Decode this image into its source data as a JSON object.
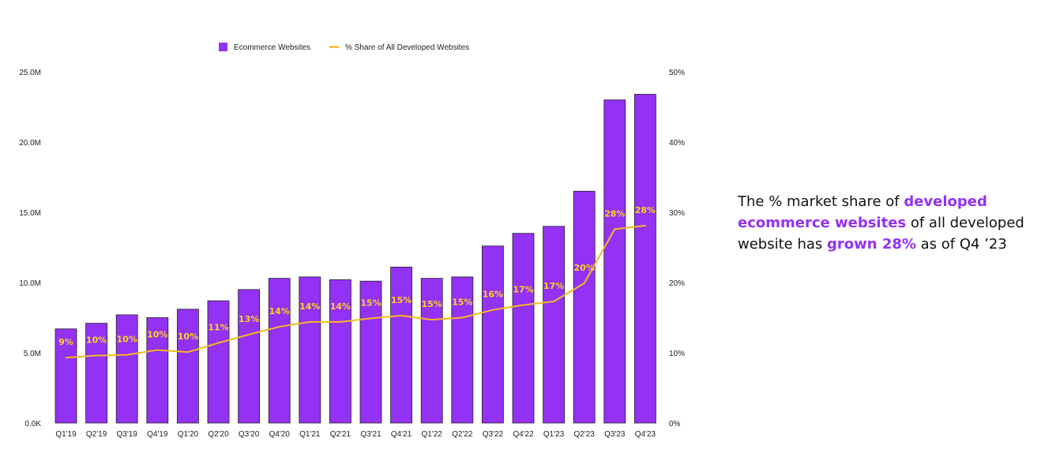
{
  "chart_data": {
    "type": "bar",
    "categories": [
      "Q1'19",
      "Q2'19",
      "Q3'19",
      "Q4'19",
      "Q1'20",
      "Q2'20",
      "Q3'20",
      "Q4'20",
      "Q1'21",
      "Q2'21",
      "Q3'21",
      "Q4'21",
      "Q1'22",
      "Q2'22",
      "Q3'22",
      "Q4'22",
      "Q1'23",
      "Q2'23",
      "Q3'23",
      "Q4'23"
    ],
    "series": [
      {
        "name": "Ecommerce Websites",
        "kind": "bar",
        "axis": "left",
        "color": "#9331F5",
        "values": [
          6.7,
          7.1,
          7.7,
          7.5,
          8.1,
          8.7,
          9.5,
          10.3,
          10.4,
          10.2,
          10.1,
          11.1,
          10.3,
          10.4,
          12.6,
          13.5,
          14.0,
          16.5,
          23.0,
          23.4
        ]
      },
      {
        "name": "% Share of All Developed Websites",
        "kind": "line",
        "axis": "right",
        "color": "#F5B823",
        "values": [
          9.3,
          9.6,
          9.7,
          10.4,
          10.1,
          11.4,
          12.6,
          13.7,
          14.4,
          14.4,
          14.9,
          15.3,
          14.7,
          15.0,
          16.1,
          16.8,
          17.3,
          19.9,
          27.6,
          28.1
        ]
      }
    ],
    "data_labels": [
      "9%",
      "10%",
      "10%",
      "10%",
      "10%",
      "11%",
      "13%",
      "14%",
      "14%",
      "14%",
      "15%",
      "15%",
      "15%",
      "15%",
      "16%",
      "17%",
      "17%",
      "20%",
      "28%",
      "28%"
    ],
    "left_axis": {
      "min": 0,
      "max": 25,
      "ticks": [
        "0.0K",
        "5.0M",
        "10.0M",
        "15.0M",
        "20.0M",
        "25.0M"
      ]
    },
    "right_axis": {
      "min": 0,
      "max": 50,
      "ticks": [
        "0%",
        "10%",
        "20%",
        "30%",
        "40%",
        "50%"
      ]
    },
    "legend_position": "top-center",
    "grid": false,
    "colors": {
      "bar": "#9331F5",
      "line": "#F5B823",
      "label": "#FFD21F"
    }
  },
  "caption": {
    "part1": "The % market share of ",
    "highlight1": "developed ecommerce websites",
    "part2": " of all developed website has ",
    "highlight2": "grown 28%",
    "part3": " as of Q4 ’23"
  }
}
